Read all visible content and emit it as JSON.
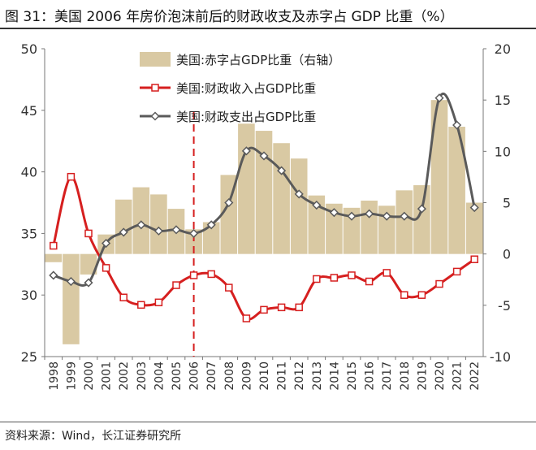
{
  "header": {
    "title": "图 31：美国 2006 年房价泡沫前后的财政收支及赤字占 GDP 比重（%）"
  },
  "footer": {
    "source": "资料来源：Wind，长江证券研究所"
  },
  "chart_data": {
    "type": "bar+line",
    "x": [
      "1998",
      "1999",
      "2000",
      "2001",
      "2002",
      "2003",
      "2004",
      "2005",
      "2006",
      "2007",
      "2008",
      "2009",
      "2010",
      "2011",
      "2012",
      "2013",
      "2014",
      "2015",
      "2016",
      "2017",
      "2018",
      "2019",
      "2020",
      "2021",
      "2022"
    ],
    "y_left": {
      "ticks": [
        25,
        30,
        35,
        40,
        45,
        50
      ],
      "range": [
        25,
        50
      ]
    },
    "y_right": {
      "ticks": [
        -10,
        -5,
        0,
        5,
        10,
        15,
        20
      ],
      "range": [
        -10,
        20
      ]
    },
    "marker_line_at": "2006",
    "series": [
      {
        "name": "美国:赤字占GDP比重（右轴）",
        "kind": "bar",
        "axis": "right",
        "color": "#d9c9a3",
        "values": [
          -0.8,
          -8.8,
          -2.0,
          1.9,
          5.3,
          6.5,
          5.8,
          4.4,
          2.4,
          3.1,
          7.7,
          12.7,
          12.0,
          10.8,
          9.3,
          5.7,
          4.9,
          4.5,
          5.2,
          4.7,
          6.2,
          6.7,
          15.0,
          12.4,
          5.0
        ]
      },
      {
        "name": "美国:财政收入占GDP比重",
        "kind": "line",
        "marker": "square",
        "axis": "left",
        "color": "#d61f1f",
        "values": [
          34.0,
          39.6,
          35.0,
          32.2,
          29.8,
          29.2,
          29.4,
          30.8,
          31.6,
          31.7,
          30.6,
          28.1,
          28.8,
          29.0,
          29.0,
          31.3,
          31.4,
          31.6,
          31.1,
          31.8,
          30.0,
          30.0,
          30.9,
          31.9,
          32.9
        ]
      },
      {
        "name": "美国:财政支出占GDP比重",
        "kind": "line",
        "marker": "diamond",
        "axis": "left",
        "color": "#5a5a5a",
        "values": [
          31.6,
          31.1,
          31.0,
          34.2,
          35.1,
          35.7,
          35.2,
          35.3,
          35.0,
          35.7,
          37.5,
          41.7,
          41.3,
          40.1,
          38.2,
          37.3,
          36.7,
          36.4,
          36.6,
          36.4,
          36.4,
          37.0,
          46.0,
          43.8,
          37.1
        ]
      }
    ]
  }
}
